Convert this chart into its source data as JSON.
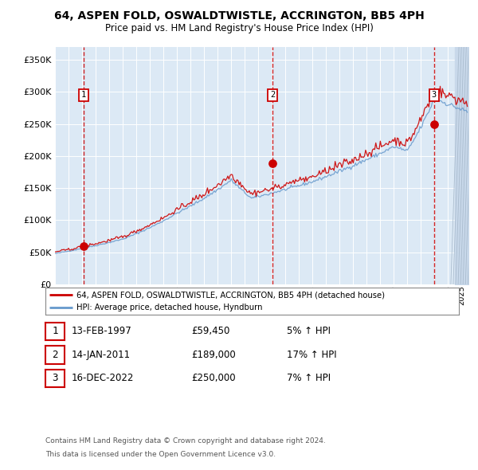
{
  "title": "64, ASPEN FOLD, OSWALDTWISTLE, ACCRINGTON, BB5 4PH",
  "subtitle": "Price paid vs. HM Land Registry's House Price Index (HPI)",
  "sale_points": [
    {
      "label": "1",
      "date": "13-FEB-1997",
      "price": 59450,
      "hpi_pct": "5% ↑ HPI"
    },
    {
      "label": "2",
      "date": "14-JAN-2011",
      "price": 189000,
      "hpi_pct": "17% ↑ HPI"
    },
    {
      "label": "3",
      "date": "16-DEC-2022",
      "price": 250000,
      "hpi_pct": "7% ↑ HPI"
    }
  ],
  "sale_dates_decimal": [
    1997.12,
    2011.04,
    2022.96
  ],
  "sale_prices": [
    59450,
    189000,
    250000
  ],
  "legend_red": "64, ASPEN FOLD, OSWALDTWISTLE, ACCRINGTON, BB5 4PH (detached house)",
  "legend_blue": "HPI: Average price, detached house, Hyndburn",
  "footer1": "Contains HM Land Registry data © Crown copyright and database right 2024.",
  "footer2": "This data is licensed under the Open Government Licence v3.0.",
  "xlim": [
    1995.0,
    2025.5
  ],
  "ylim": [
    0,
    370000
  ],
  "yticks": [
    0,
    50000,
    100000,
    150000,
    200000,
    250000,
    300000,
    350000
  ],
  "bg_color": "#dce9f5",
  "grid_color": "#ffffff",
  "red_line_color": "#cc0000",
  "blue_line_color": "#6699cc",
  "vline_color": "#cc0000",
  "marker_color": "#cc0000"
}
